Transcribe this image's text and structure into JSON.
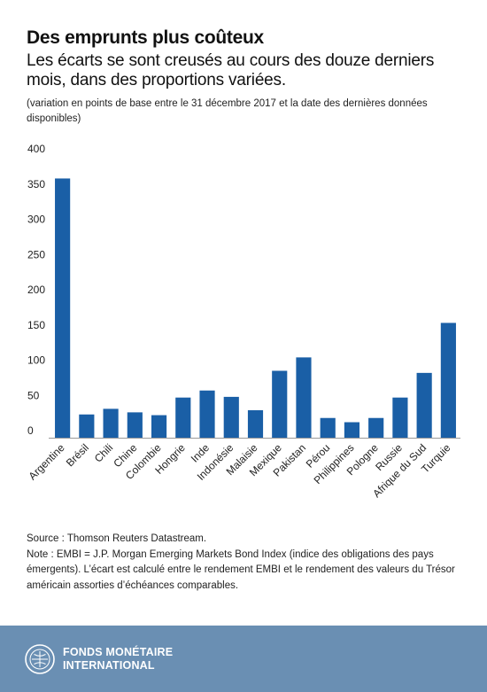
{
  "header": {
    "title": "Des emprunts plus coûteux",
    "subtitle": "Les écarts se sont creusés au cours des douze derniers mois, dans des proportions variées.",
    "note": "(variation en points de base entre le 31 décembre 2017 et la date des dernières données disponibles)"
  },
  "chart_data": {
    "type": "bar",
    "categories": [
      "Argentine",
      "Brésil",
      "Chili",
      "Chine",
      "Colombie",
      "Hongrie",
      "Inde",
      "Indonésie",
      "Malaisie",
      "Mexique",
      "Pakistan",
      "Pérou",
      "Philippines",
      "Pologne",
      "Russie",
      "Afrique du Sud",
      "Turquie"
    ],
    "values": [
      368,
      33,
      41,
      36,
      32,
      57,
      67,
      58,
      39,
      95,
      114,
      28,
      22,
      28,
      57,
      92,
      163
    ],
    "ylim": [
      0,
      400
    ],
    "yticks": [
      0,
      50,
      100,
      150,
      200,
      250,
      300,
      350,
      400
    ],
    "grid": false,
    "bar_color": "#1a5fa6"
  },
  "footer": {
    "source": "Source : Thomson Reuters Datastream.",
    "note": "Note : EMBI = J.P. Morgan Emerging Markets Bond Index (indice des obligations des pays émergents). L’écart est calculé entre le rendement EMBI et le rendement des valeurs du Trésor américain assorties d’échéances comparables."
  },
  "branding": {
    "line1": "FONDS MONÉTAIRE",
    "line2": "INTERNATIONAL",
    "band_color": "#6a8fb3",
    "logo_icon": "imf-seal-icon"
  }
}
